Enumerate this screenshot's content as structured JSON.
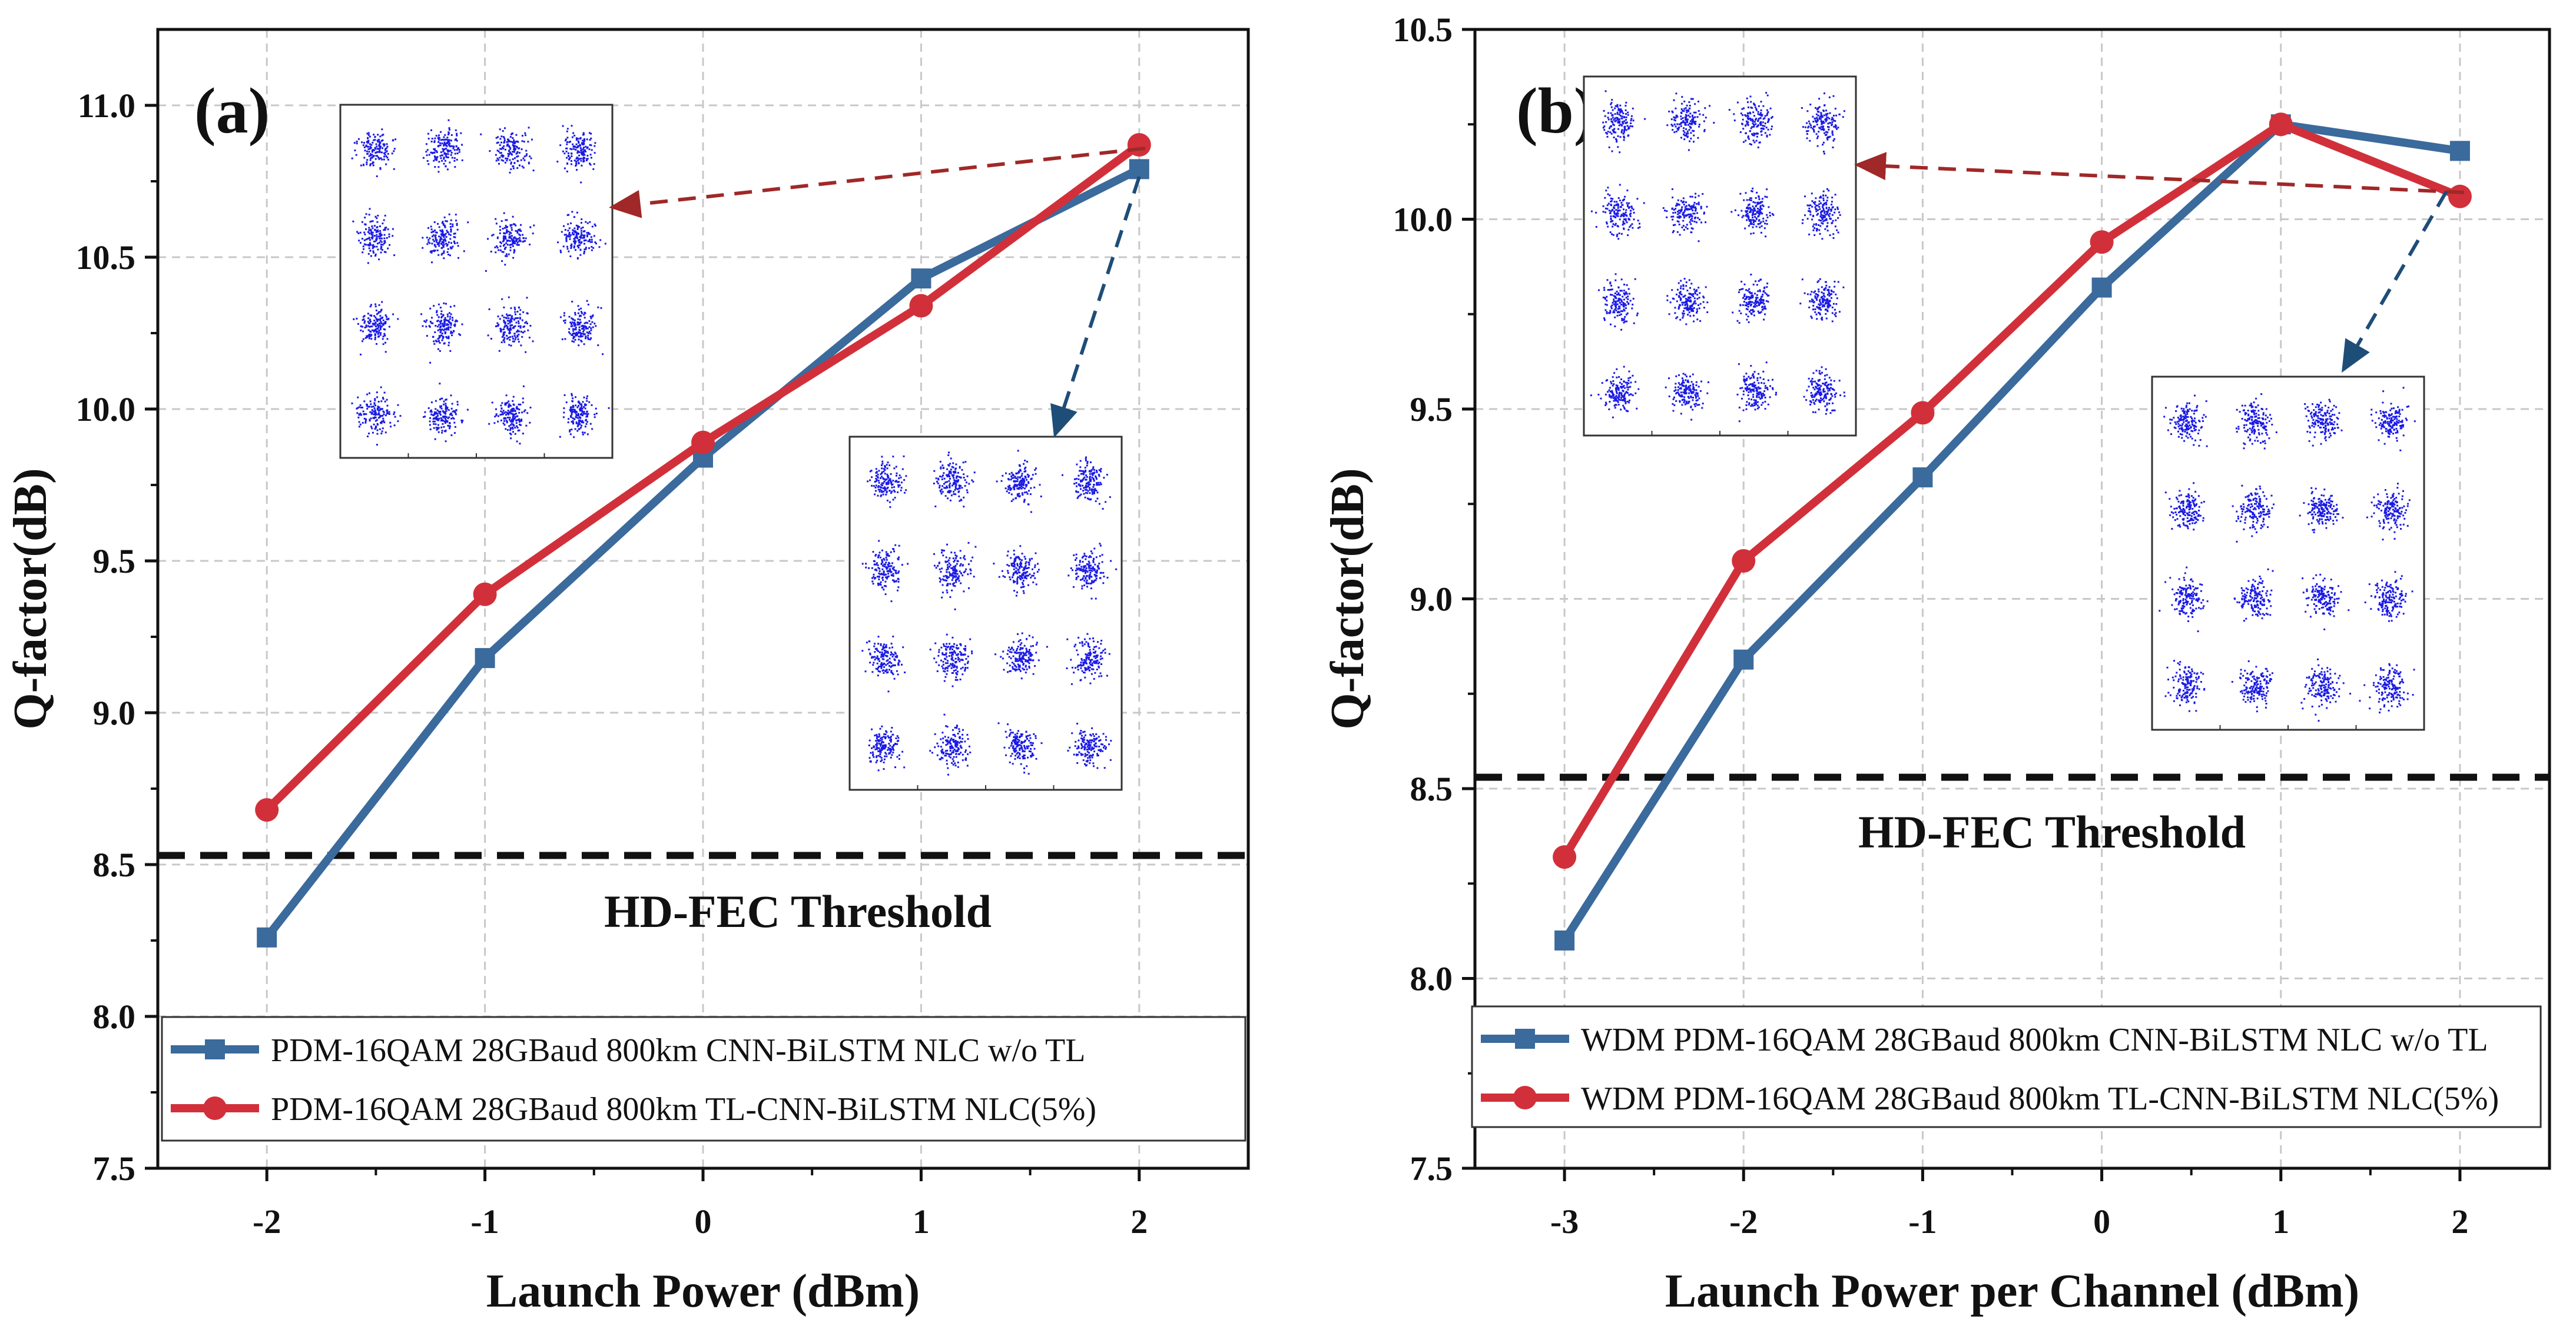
{
  "colors": {
    "blue": "#3B6A9C",
    "red": "#D1303A",
    "threshold": "#111111",
    "grid": "#C8C8C8",
    "constellation": "#1A1AE6",
    "arrow_red": "#A02828",
    "arrow_blue": "#1E4D78"
  },
  "chart_data": [
    {
      "type": "line",
      "panel_label": "(a)",
      "xlabel": "Launch Power (dBm)",
      "ylabel": "Q-factor(dB)",
      "categories": [
        "-2",
        "-1",
        "0",
        "1",
        "2"
      ],
      "x": [
        -2,
        -1,
        0,
        1,
        2
      ],
      "xlim": [
        -2.5,
        2.5
      ],
      "ylim": [
        7.5,
        11.25
      ],
      "yticks": [
        7.5,
        8.0,
        8.5,
        9.0,
        9.5,
        10.0,
        10.5,
        11.0
      ],
      "ytick_labels": [
        "7.5",
        "8.0",
        "8.5",
        "9.0",
        "9.5",
        "10.0",
        "10.5",
        "11.0"
      ],
      "grid": true,
      "threshold": {
        "value": 8.53,
        "label": "HD-FEC Threshold"
      },
      "legend_position": "bottom",
      "series": [
        {
          "name": "PDM-16QAM 28GBaud 800km CNN-BiLSTM NLC w/o TL",
          "marker": "square",
          "values": [
            8.26,
            9.18,
            9.84,
            10.43,
            10.79
          ]
        },
        {
          "name": "PDM-16QAM 28GBaud 800km TL-CNN-BiLSTM NLC(5%)",
          "marker": "circle",
          "values": [
            8.68,
            9.39,
            9.89,
            10.34,
            10.87
          ]
        }
      ]
    },
    {
      "type": "line",
      "panel_label": "(b)",
      "xlabel": "Launch Power per Channel (dBm)",
      "ylabel": "Q-factor(dB)",
      "categories": [
        "-3",
        "-2",
        "-1",
        "0",
        "1",
        "2"
      ],
      "x": [
        -3,
        -2,
        -1,
        0,
        1,
        2
      ],
      "xlim": [
        -3.5,
        2.5
      ],
      "ylim": [
        7.5,
        10.5
      ],
      "yticks": [
        7.5,
        8.0,
        8.5,
        9.0,
        9.5,
        10.0,
        10.5
      ],
      "ytick_labels": [
        "7.5",
        "8.0",
        "8.5",
        "9.0",
        "9.5",
        "10.0",
        "10.5"
      ],
      "grid": true,
      "threshold": {
        "value": 8.53,
        "label": "HD-FEC Threshold"
      },
      "legend_position": "bottom",
      "series": [
        {
          "name": "WDM PDM-16QAM 28GBaud 800km CNN-BiLSTM NLC w/o TL",
          "marker": "square",
          "values": [
            8.1,
            8.84,
            9.32,
            9.82,
            10.25,
            10.18
          ]
        },
        {
          "name": "WDM PDM-16QAM 28GBaud 800km TL-CNN-BiLSTM NLC(5%)",
          "marker": "circle",
          "values": [
            8.32,
            9.1,
            9.49,
            9.94,
            10.25,
            10.06
          ]
        }
      ]
    }
  ]
}
